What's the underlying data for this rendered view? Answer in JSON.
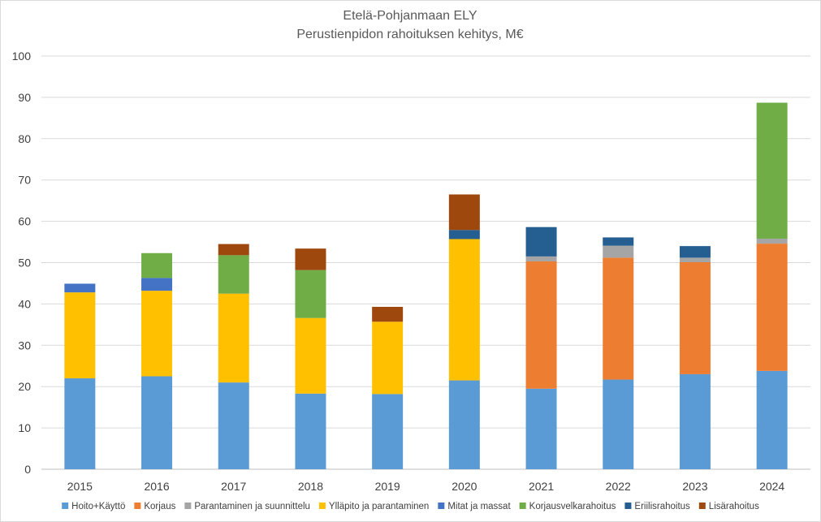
{
  "chart_data": {
    "type": "bar",
    "stacked": true,
    "title": "Etelä-Pohjanmaan ELY",
    "subtitle": "Perustienpidon rahoituksen kehitys, M€",
    "xlabel": "",
    "ylabel": "",
    "ylim": [
      0,
      100
    ],
    "yticks": [
      0,
      10,
      20,
      30,
      40,
      50,
      60,
      70,
      80,
      90,
      100
    ],
    "grid": true,
    "legend_position": "bottom",
    "categories": [
      "2015",
      "2016",
      "2017",
      "2018",
      "2019",
      "2020",
      "2021",
      "2022",
      "2023",
      "2024"
    ],
    "series": [
      {
        "name": "Hoito+Käyttö",
        "color": "#5b9bd5",
        "values": [
          22.0,
          22.5,
          21.0,
          18.3,
          18.2,
          21.5,
          19.5,
          21.7,
          23.0,
          23.8
        ]
      },
      {
        "name": "Korjaus",
        "color": "#ed7d31",
        "values": [
          0,
          0,
          0,
          0,
          0,
          0,
          30.8,
          29.5,
          27.1,
          30.8
        ]
      },
      {
        "name": "Parantaminen ja suunnittelu",
        "color": "#a5a5a5",
        "values": [
          0,
          0,
          0,
          0,
          0,
          0,
          1.2,
          2.9,
          1.1,
          1.2
        ]
      },
      {
        "name": "Ylläpito ja parantaminen",
        "color": "#ffc000",
        "values": [
          20.8,
          20.7,
          21.5,
          18.3,
          17.5,
          34.2,
          0,
          0,
          0,
          0
        ]
      },
      {
        "name": "Mitat ja massat",
        "color": "#4472c4",
        "values": [
          2.1,
          3.1,
          0,
          0,
          0,
          0,
          0,
          0,
          0,
          0
        ]
      },
      {
        "name": "Korjausvelkarahoitus",
        "color": "#70ad47",
        "values": [
          0,
          6.0,
          9.3,
          11.6,
          0,
          0,
          0,
          0,
          0,
          32.9
        ]
      },
      {
        "name": "Eriilisrahoitus",
        "color": "#255e91",
        "values": [
          0,
          0,
          0,
          0,
          0,
          2.2,
          7.1,
          2.0,
          2.8,
          0
        ]
      },
      {
        "name": "Lisärahoitus",
        "color": "#9e480e",
        "values": [
          0,
          0,
          2.7,
          5.2,
          3.6,
          8.6,
          0,
          0,
          0,
          0
        ]
      }
    ]
  }
}
